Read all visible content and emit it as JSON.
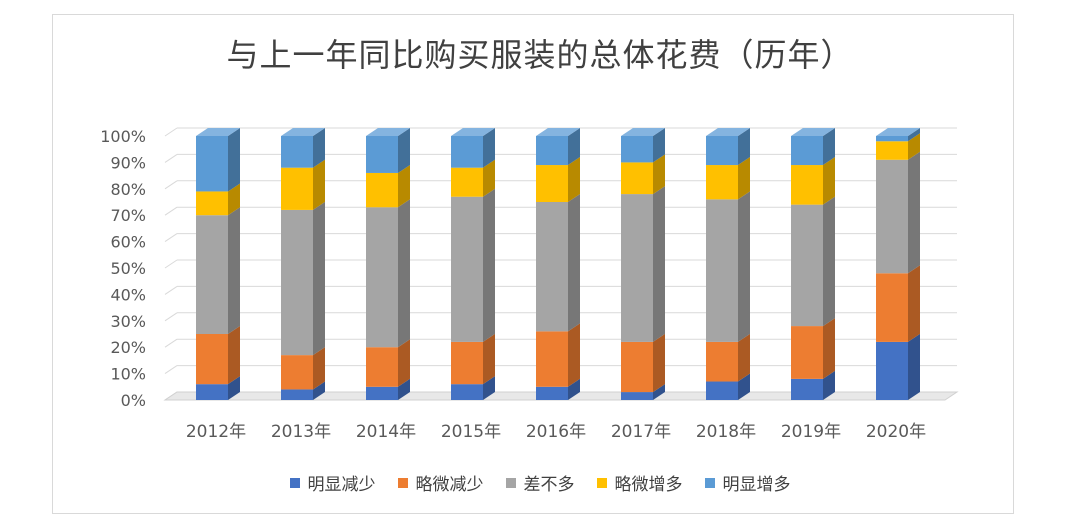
{
  "chart_data": {
    "type": "bar",
    "stacked": true,
    "percent": true,
    "title": "与上一年同比购买服装的总体花费（历年）",
    "categories": [
      "2012年",
      "2013年",
      "2014年",
      "2015年",
      "2016年",
      "2017年",
      "2018年",
      "2019年",
      "2020年"
    ],
    "y_ticks": [
      "0%",
      "10%",
      "20%",
      "30%",
      "40%",
      "50%",
      "60%",
      "70%",
      "80%",
      "90%",
      "100%"
    ],
    "ylim": [
      0,
      100
    ],
    "legend_position": "bottom",
    "grid": true,
    "series": [
      {
        "name": "明显减少",
        "color": "#4472c4",
        "values": [
          6,
          4,
          5,
          6,
          5,
          3,
          7,
          8,
          22
        ]
      },
      {
        "name": "略微减少",
        "color": "#ed7d31",
        "values": [
          19,
          13,
          15,
          16,
          21,
          19,
          15,
          20,
          26
        ]
      },
      {
        "name": "差不多",
        "color": "#a5a5a5",
        "values": [
          45,
          55,
          53,
          55,
          49,
          56,
          54,
          46,
          43
        ]
      },
      {
        "name": "略微增多",
        "color": "#ffc000",
        "values": [
          9,
          16,
          13,
          11,
          14,
          12,
          13,
          15,
          7
        ]
      },
      {
        "name": "明显增多",
        "color": "#5b9bd5",
        "values": [
          21,
          12,
          14,
          12,
          11,
          10,
          11,
          11,
          2
        ]
      }
    ]
  }
}
